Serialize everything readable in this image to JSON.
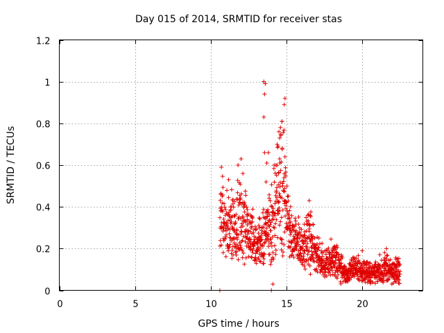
{
  "chart_data": {
    "type": "scatter",
    "title": "Day 015 of 2014, SRMTID for receiver stas",
    "xlabel": "GPS time / hours",
    "ylabel": "SRMTID / TECUs",
    "xlim": [
      0,
      24
    ],
    "ylim": [
      0,
      1.2
    ],
    "xticks": [
      0,
      5,
      10,
      15,
      20
    ],
    "yticks": [
      0,
      0.2,
      0.4,
      0.6,
      0.8,
      1,
      1.2
    ],
    "xtick_labels": [
      "0",
      "5",
      "10",
      "15",
      "20"
    ],
    "ytick_labels": [
      "0",
      "0.2",
      "0.4",
      "0.6",
      "0.8",
      "1",
      "1.2"
    ],
    "grid": true,
    "marker": "+",
    "color": "#e00000",
    "series": [
      {
        "name": "stas",
        "envelope": [
          {
            "x": 10.6,
            "low": 0.12,
            "high": 0.59
          },
          {
            "x": 11.0,
            "low": 0.14,
            "high": 0.56
          },
          {
            "x": 11.5,
            "low": 0.1,
            "high": 0.55
          },
          {
            "x": 12.0,
            "low": 0.1,
            "high": 0.62
          },
          {
            "x": 12.5,
            "low": 0.09,
            "high": 0.46
          },
          {
            "x": 13.0,
            "low": 0.1,
            "high": 0.36
          },
          {
            "x": 13.5,
            "low": 0.1,
            "high": 0.45
          },
          {
            "x": 14.0,
            "low": 0.07,
            "high": 0.57
          },
          {
            "x": 14.4,
            "low": 0.1,
            "high": 0.78
          },
          {
            "x": 14.8,
            "low": 0.15,
            "high": 0.9
          },
          {
            "x": 15.0,
            "low": 0.22,
            "high": 0.55
          },
          {
            "x": 15.3,
            "low": 0.12,
            "high": 0.4
          },
          {
            "x": 16.0,
            "low": 0.09,
            "high": 0.35
          },
          {
            "x": 16.5,
            "low": 0.07,
            "high": 0.43
          },
          {
            "x": 17.0,
            "low": 0.07,
            "high": 0.28
          },
          {
            "x": 17.5,
            "low": 0.05,
            "high": 0.22
          },
          {
            "x": 18.0,
            "low": 0.05,
            "high": 0.27
          },
          {
            "x": 18.5,
            "low": 0.03,
            "high": 0.2
          },
          {
            "x": 19.0,
            "low": 0.03,
            "high": 0.12
          },
          {
            "x": 19.5,
            "low": 0.04,
            "high": 0.19
          },
          {
            "x": 20.0,
            "low": 0.03,
            "high": 0.16
          },
          {
            "x": 20.5,
            "low": 0.03,
            "high": 0.14
          },
          {
            "x": 21.0,
            "low": 0.03,
            "high": 0.16
          },
          {
            "x": 21.5,
            "low": 0.03,
            "high": 0.2
          },
          {
            "x": 22.0,
            "low": 0.02,
            "high": 0.15
          },
          {
            "x": 22.5,
            "low": 0.03,
            "high": 0.18
          }
        ],
        "outliers": [
          {
            "x": 13.5,
            "y": 1.0
          },
          {
            "x": 13.6,
            "y": 0.99
          },
          {
            "x": 13.55,
            "y": 0.94
          },
          {
            "x": 13.5,
            "y": 0.83
          },
          {
            "x": 13.55,
            "y": 0.66
          },
          {
            "x": 13.8,
            "y": 0.66
          },
          {
            "x": 13.7,
            "y": 0.61
          },
          {
            "x": 13.65,
            "y": 0.52
          },
          {
            "x": 14.9,
            "y": 0.92
          },
          {
            "x": 14.85,
            "y": 0.89
          },
          {
            "x": 14.7,
            "y": 0.81
          },
          {
            "x": 14.6,
            "y": 0.78
          },
          {
            "x": 14.5,
            "y": 0.76
          },
          {
            "x": 14.55,
            "y": 0.73
          },
          {
            "x": 14.45,
            "y": 0.69
          },
          {
            "x": 14.9,
            "y": 0.64
          },
          {
            "x": 14.3,
            "y": 0.6
          },
          {
            "x": 12.0,
            "y": 0.63
          },
          {
            "x": 11.8,
            "y": 0.6
          },
          {
            "x": 10.7,
            "y": 0.59
          },
          {
            "x": 16.5,
            "y": 0.43
          },
          {
            "x": 14.1,
            "y": 0.03
          },
          {
            "x": 10.6,
            "y": 0.0
          },
          {
            "x": 14.0,
            "y": 0.0
          },
          {
            "x": 20.0,
            "y": 0.19
          },
          {
            "x": 21.6,
            "y": 0.2
          }
        ]
      }
    ]
  }
}
